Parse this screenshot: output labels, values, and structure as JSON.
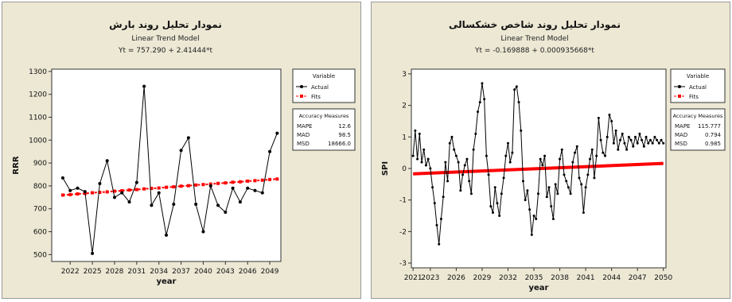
{
  "chart_data": [
    {
      "type": "line",
      "title": "نمودار تحلیل روند بارش",
      "subtitle": "Linear Trend Model",
      "equation": "Yt = 757.290 + 2.41444*t",
      "xlabel": "year",
      "ylabel": "RRR",
      "xlim": [
        2019.5,
        2050.5
      ],
      "ylim": [
        470,
        1310
      ],
      "xticks": [
        "2022",
        "2025",
        "2028",
        "2031",
        "2034",
        "2037",
        "2040",
        "2043",
        "2046",
        "2049"
      ],
      "yticks": [
        "500",
        "600",
        "700",
        "800",
        "900",
        "1000",
        "1100",
        "1200",
        "1300"
      ],
      "x": [
        2021,
        2022,
        2023,
        2024,
        2025,
        2026,
        2027,
        2028,
        2029,
        2030,
        2031,
        2032,
        2033,
        2034,
        2035,
        2036,
        2037,
        2038,
        2039,
        2040,
        2041,
        2042,
        2043,
        2044,
        2045,
        2046,
        2047,
        2048,
        2049,
        2050
      ],
      "series": [
        {
          "name": "Actual",
          "color": "#000000",
          "values": [
            835,
            780,
            790,
            775,
            505,
            810,
            910,
            750,
            770,
            730,
            815,
            1235,
            715,
            770,
            585,
            720,
            955,
            1010,
            720,
            600,
            800,
            715,
            685,
            790,
            730,
            790,
            780,
            770,
            950,
            1030
          ]
        },
        {
          "name": "Fits",
          "color": "#ff0000",
          "values": [
            760,
            762,
            765,
            767,
            770,
            772,
            774,
            777,
            779,
            782,
            784,
            787,
            789,
            791,
            794,
            796,
            799,
            801,
            804,
            806,
            808,
            811,
            813,
            816,
            818,
            821,
            823,
            825,
            828,
            830
          ]
        }
      ],
      "legend": {
        "title": "Variable",
        "items": [
          "Actual",
          "Fits"
        ]
      },
      "accuracy": {
        "title": "Accuracy Measures",
        "rows": [
          {
            "label": "MAPE",
            "value": "12.6"
          },
          {
            "label": "MAD",
            "value": "98.5"
          },
          {
            "label": "MSD",
            "value": "18666.0"
          }
        ]
      }
    },
    {
      "type": "line",
      "title": "نمودار تحلیل روند شاخص خشکسالی",
      "subtitle": "Linear Trend Model",
      "equation": "Yt = -0.169888 + 0.000935668*t",
      "xlabel": "year",
      "ylabel": "SPI",
      "xlim": [
        2020.8,
        2050.3
      ],
      "ylim": [
        -3.15,
        3.15
      ],
      "xticks": [
        "2021",
        "2023",
        "2026",
        "2029",
        "2032",
        "2035",
        "2038",
        "2041",
        "2044",
        "2047",
        "2050"
      ],
      "yticks": [
        "-3",
        "-2",
        "-1",
        "0",
        "1",
        "2",
        "3"
      ],
      "legend": {
        "title": "Variable",
        "items": [
          "Actual",
          "Fits"
        ]
      },
      "accuracy": {
        "title": "Accuracy Measures",
        "rows": [
          {
            "label": "MAPE",
            "value": "115.777"
          },
          {
            "label": "MAD",
            "value": "0.794"
          },
          {
            "label": "MSD",
            "value": "0.985"
          }
        ]
      },
      "fit": {
        "x": [
          2021,
          2050
        ],
        "y": [
          -0.17,
          0.16
        ],
        "color": "#ff0000"
      },
      "series": [
        {
          "name": "Actual",
          "color": "#000000",
          "x": [
            2021.0,
            2021.25,
            2021.5,
            2021.75,
            2022.0,
            2022.25,
            2022.5,
            2022.75,
            2023.0,
            2023.25,
            2023.5,
            2023.75,
            2024.0,
            2024.25,
            2024.5,
            2024.75,
            2025.0,
            2025.25,
            2025.5,
            2025.75,
            2026.0,
            2026.25,
            2026.5,
            2026.75,
            2027.0,
            2027.25,
            2027.5,
            2027.75,
            2028.0,
            2028.25,
            2028.5,
            2028.75,
            2029.0,
            2029.25,
            2029.5,
            2029.75,
            2030.0,
            2030.25,
            2030.5,
            2030.75,
            2031.0,
            2031.25,
            2031.5,
            2031.75,
            2032.0,
            2032.25,
            2032.5,
            2032.75,
            2033.0,
            2033.25,
            2033.5,
            2033.75,
            2034.0,
            2034.25,
            2034.5,
            2034.75,
            2035.0,
            2035.25,
            2035.5,
            2035.75,
            2036.0,
            2036.25,
            2036.5,
            2036.75,
            2037.0,
            2037.25,
            2037.5,
            2037.75,
            2038.0,
            2038.25,
            2038.5,
            2038.75,
            2039.0,
            2039.25,
            2039.5,
            2039.75,
            2040.0,
            2040.25,
            2040.5,
            2040.75,
            2041.0,
            2041.25,
            2041.5,
            2041.75,
            2042.0,
            2042.25,
            2042.5,
            2042.75,
            2043.0,
            2043.25,
            2043.5,
            2043.75,
            2044.0,
            2044.25,
            2044.5,
            2044.75,
            2045.0,
            2045.25,
            2045.5,
            2045.75,
            2046.0,
            2046.25,
            2046.5,
            2046.75,
            2047.0,
            2047.25,
            2047.5,
            2047.75,
            2048.0,
            2048.25,
            2048.5,
            2048.75,
            2049.0,
            2049.25,
            2049.5,
            2049.75,
            2050.0
          ],
          "values": [
            0.4,
            1.2,
            0.3,
            1.1,
            0.2,
            0.6,
            0.1,
            0.3,
            0.0,
            -0.6,
            -1.1,
            -1.8,
            -2.4,
            -1.6,
            -0.9,
            0.2,
            -0.4,
            0.8,
            1.0,
            0.6,
            0.4,
            0.2,
            -0.7,
            -0.2,
            0.1,
            0.3,
            -0.4,
            -0.8,
            0.6,
            1.1,
            1.8,
            2.1,
            2.7,
            2.2,
            0.4,
            -0.2,
            -1.2,
            -1.4,
            -0.6,
            -1.1,
            -1.5,
            -0.8,
            -0.3,
            0.4,
            0.8,
            0.2,
            0.5,
            2.5,
            2.6,
            2.1,
            1.2,
            -0.4,
            -1.0,
            -0.7,
            -1.3,
            -2.1,
            -1.5,
            -1.6,
            -0.8,
            0.3,
            0.1,
            0.4,
            -0.9,
            -0.6,
            -1.2,
            -1.6,
            -0.5,
            -0.8,
            0.3,
            0.6,
            -0.2,
            -0.4,
            -0.6,
            -0.8,
            0.2,
            0.5,
            0.7,
            -0.3,
            -0.5,
            -1.4,
            -0.6,
            -0.2,
            0.3,
            0.6,
            -0.3,
            0.4,
            1.6,
            0.9,
            0.5,
            0.4,
            1.0,
            1.7,
            1.5,
            0.8,
            1.2,
            0.6,
            0.9,
            1.1,
            0.8,
            0.6,
            1.0,
            0.9,
            0.7,
            1.0,
            0.8,
            1.1,
            0.9,
            0.7,
            1.0,
            0.8,
            0.9,
            0.8,
            1.0,
            0.9,
            0.8,
            0.9,
            0.8
          ]
        }
      ]
    }
  ]
}
